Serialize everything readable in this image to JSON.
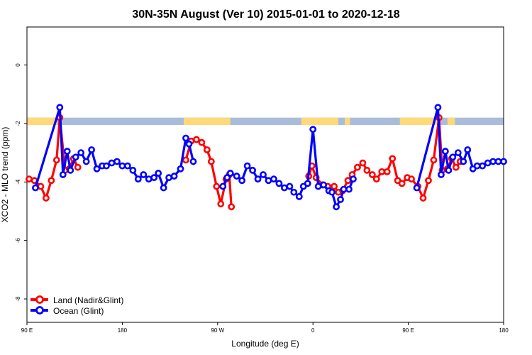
{
  "chart_data": {
    "type": "line",
    "title": "30N-35N August (Ver 10)   2015-01-01 to 2020-12-18",
    "xlabel": "Longitude (deg E)",
    "ylabel": "XCO2 - MLO trend (ppm)",
    "x_ticks": [
      {
        "value": 90,
        "label": "90 E"
      },
      {
        "value": 180,
        "label": "180"
      },
      {
        "value": 270,
        "label": "90 W"
      },
      {
        "value": 360,
        "label": "0"
      },
      {
        "value": 450,
        "label": "90 E"
      },
      {
        "value": 540,
        "label": "180"
      }
    ],
    "y_ticks": [
      {
        "value": 0,
        "label": "0"
      },
      {
        "value": -2,
        "label": "-2"
      },
      {
        "value": -4,
        "label": "-4"
      },
      {
        "value": -6,
        "label": "-6"
      },
      {
        "value": -8,
        "label": "-8"
      }
    ],
    "xlim": [
      90,
      540
    ],
    "ylim": [
      -8.8,
      1.3
    ],
    "grid": false,
    "legend_position": "bottom-left",
    "land_ocean_band": {
      "y_range": [
        -1.8,
        -2.05
      ],
      "land_color": "#ffd97a",
      "ocean_color": "#a9bddb",
      "land_lon_segments": [
        [
          90,
          118
        ],
        [
          238,
          282
        ],
        [
          349,
          384
        ],
        [
          390,
          395
        ],
        [
          442,
          480
        ],
        [
          487,
          494
        ]
      ]
    },
    "series": [
      {
        "name": "Land (Nadir&Glint)",
        "color": "#ff0000",
        "segments": [
          {
            "x": [
              92,
              97,
              103,
              108,
              113,
              118,
              121,
              126,
              130,
              134,
              138
            ],
            "y": [
              -3.9,
              -3.95,
              -4.15,
              -4.55,
              -3.95,
              -3.25,
              -1.8,
              -3.6,
              -3.55,
              -3.2,
              -3.5
            ]
          },
          {
            "x": [
              240,
              245,
              250,
              255,
              260,
              264,
              269,
              273,
              278,
              281,
              283
            ],
            "y": [
              -3.25,
              -2.6,
              -2.55,
              -2.65,
              -2.9,
              -3.3,
              -4.15,
              -4.75,
              -3.9,
              -3.75,
              -4.85
            ]
          },
          {
            "x": [
              356,
              359,
              363,
              369,
              374,
              380,
              384,
              388,
              393,
              397,
              402,
              407,
              411,
              416,
              420,
              425,
              430,
              435,
              440,
              444,
              449,
              453,
              459,
              464,
              469,
              474,
              479,
              482,
              487,
              491,
              495,
              499
            ],
            "y": [
              -3.8,
              -3.45,
              -3.85,
              -4.1,
              -4.15,
              -4.15,
              -4.35,
              -4.3,
              -3.95,
              -3.75,
              -3.5,
              -3.35,
              -3.6,
              -3.75,
              -3.9,
              -3.65,
              -3.65,
              -3.2,
              -3.95,
              -4.05,
              -3.85,
              -3.9,
              -4.15,
              -4.55,
              -3.95,
              -3.25,
              -1.8,
              -3.6,
              -3.55,
              -3.2,
              -3.5,
              -3.3
            ]
          }
        ]
      },
      {
        "name": "Ocean (Glint)",
        "color": "#0000ff",
        "segments": [
          {
            "x": [
              98,
              121,
              124,
              128,
              131,
              136,
              141,
              146,
              151,
              156,
              161,
              165,
              170,
              175,
              180,
              185,
              190,
              195,
              200,
              205,
              210,
              214,
              219,
              224,
              229,
              235,
              240,
              243,
              247
            ],
            "y": [
              -4.2,
              -1.45,
              -3.75,
              -2.95,
              -3.6,
              -3.15,
              -3.0,
              -3.3,
              -2.9,
              -3.55,
              -3.45,
              -3.45,
              -3.35,
              -3.3,
              -3.45,
              -3.45,
              -3.6,
              -3.9,
              -3.75,
              -3.9,
              -3.85,
              -3.7,
              -4.2,
              -3.85,
              -3.8,
              -3.55,
              -2.5,
              -2.7,
              -3.3
            ]
          },
          {
            "x": [
              275,
              279,
              282,
              288,
              293,
              298,
              303,
              308,
              313,
              318,
              323,
              328,
              333,
              338,
              342,
              347,
              351,
              355,
              360,
              365,
              370,
              375,
              378,
              382,
              386,
              389,
              394,
              398
            ],
            "y": [
              -4.15,
              -3.85,
              -3.7,
              -3.8,
              -3.95,
              -3.45,
              -3.6,
              -3.9,
              -3.75,
              -3.95,
              -3.9,
              -4.05,
              -4.2,
              -4.15,
              -4.35,
              -4.5,
              -4.15,
              -4.05,
              -2.2,
              -4.15,
              -4.1,
              -4.3,
              -4.35,
              -4.85,
              -4.6,
              -4.25,
              -4.25,
              -3.9
            ]
          },
          {
            "x": [
              458,
              478,
              481,
              485,
              488,
              492,
              497,
              502,
              506,
              511,
              515,
              520,
              525,
              530,
              535,
              540
            ],
            "y": [
              -4.2,
              -1.45,
              -3.75,
              -2.95,
              -3.6,
              -3.15,
              -3.0,
              -3.3,
              -2.9,
              -3.55,
              -3.45,
              -3.45,
              -3.35,
              -3.3,
              -3.3,
              -3.3
            ]
          }
        ]
      }
    ]
  }
}
